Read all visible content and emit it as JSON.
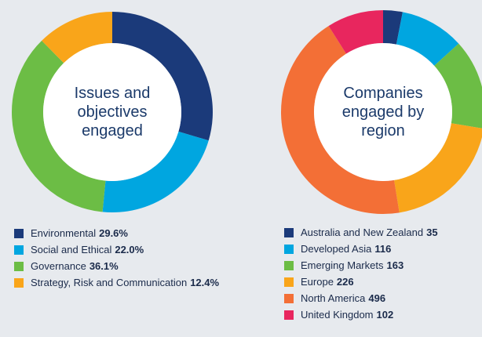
{
  "chart_data": [
    {
      "type": "pie",
      "title": "Issues and objectives engaged",
      "categories": [
        "Environmental",
        "Social and Ethical",
        "Governance",
        "Strategy, Risk and Communication"
      ],
      "values": [
        29.6,
        22.0,
        36.1,
        12.4
      ],
      "value_labels": [
        "29.6%",
        "22.0%",
        "36.1%",
        "12.4%"
      ],
      "colors": [
        "#1b3a7a",
        "#00a6e0",
        "#6cbd45",
        "#f9a51a"
      ]
    },
    {
      "type": "pie",
      "title": "Companies engaged by region",
      "categories": [
        "Australia and New Zealand",
        "Developed Asia",
        "Emerging Markets",
        "Europe",
        "North America",
        "United Kingdom"
      ],
      "values": [
        35,
        116,
        163,
        226,
        496,
        102
      ],
      "colors": [
        "#1b3a7a",
        "#00a6e0",
        "#6cbd45",
        "#f9a51a",
        "#f36f36",
        "#e8265e"
      ]
    }
  ]
}
